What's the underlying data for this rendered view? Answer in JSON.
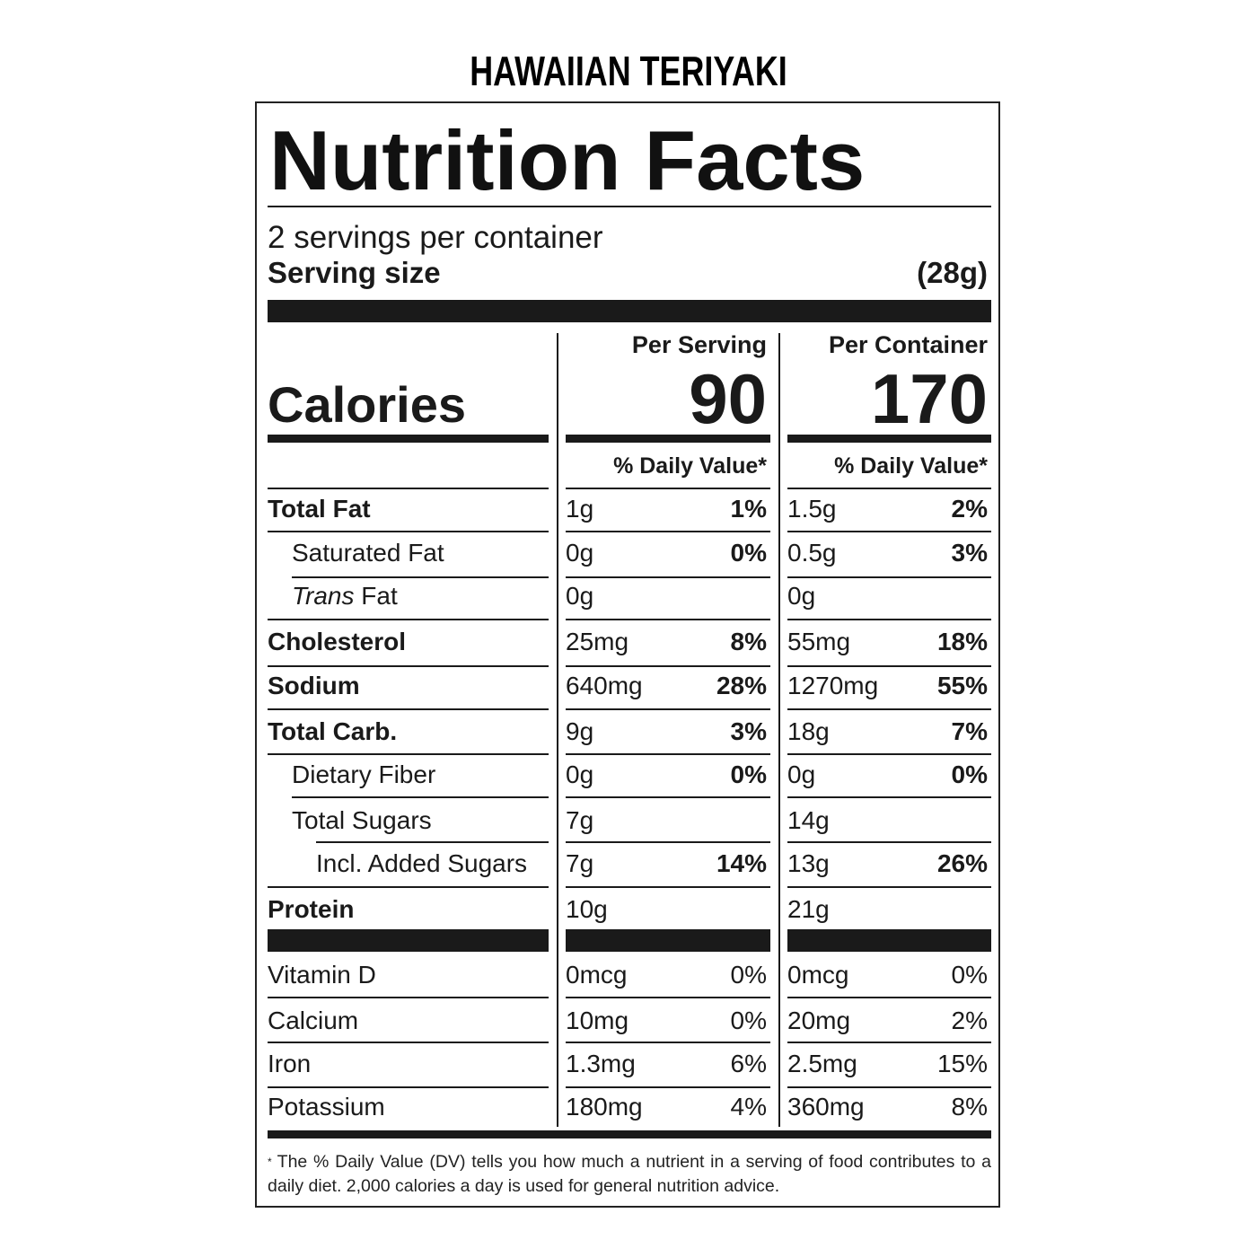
{
  "product_name": "HAWAIIAN TERIYAKI",
  "panel": {
    "title": "Nutrition Facts",
    "servings_per_container": "2 servings per container",
    "serving_size_label": "Serving size",
    "serving_size_value": "(28g)",
    "per_serving_label": "Per Serving",
    "per_container_label": "Per Container",
    "calories_label": "Calories",
    "calories_per_serving": "90",
    "calories_per_container": "170",
    "daily_value_header": "% Daily Value*",
    "nutrients": [
      {
        "label": "Total Fat",
        "bold": true,
        "indent": 0,
        "serving_amount": "1g",
        "serving_dv": "1%",
        "container_amount": "1.5g",
        "container_dv": "2%"
      },
      {
        "label": "Saturated Fat",
        "bold": false,
        "indent": 1,
        "serving_amount": "0g",
        "serving_dv": "0%",
        "container_amount": "0.5g",
        "container_dv": "3%"
      },
      {
        "label_italic": "Trans",
        "label": " Fat",
        "bold": false,
        "indent": 1,
        "serving_amount": "0g",
        "serving_dv": "",
        "container_amount": "0g",
        "container_dv": ""
      },
      {
        "label": "Cholesterol",
        "bold": true,
        "indent": 0,
        "serving_amount": "25mg",
        "serving_dv": "8%",
        "container_amount": "55mg",
        "container_dv": "18%"
      },
      {
        "label": "Sodium",
        "bold": true,
        "indent": 0,
        "serving_amount": "640mg",
        "serving_dv": "28%",
        "container_amount": "1270mg",
        "container_dv": "55%"
      },
      {
        "label": "Total Carb.",
        "bold": true,
        "indent": 0,
        "serving_amount": "9g",
        "serving_dv": "3%",
        "container_amount": "18g",
        "container_dv": "7%"
      },
      {
        "label": "Dietary Fiber",
        "bold": false,
        "indent": 1,
        "serving_amount": "0g",
        "serving_dv": "0%",
        "container_amount": "0g",
        "container_dv": "0%"
      },
      {
        "label": "Total Sugars",
        "bold": false,
        "indent": 1,
        "serving_amount": "7g",
        "serving_dv": "",
        "container_amount": "14g",
        "container_dv": ""
      },
      {
        "label": "Incl. Added Sugars",
        "bold": false,
        "indent": 2,
        "serving_amount": "7g",
        "serving_dv": "14%",
        "container_amount": "13g",
        "container_dv": "26%"
      },
      {
        "label": "Protein",
        "bold": true,
        "indent": 0,
        "serving_amount": "10g",
        "serving_dv": "",
        "container_amount": "21g",
        "container_dv": ""
      }
    ],
    "micronutrients": [
      {
        "label": "Vitamin D",
        "serving_amount": "0mcg",
        "serving_dv": "0%",
        "container_amount": "0mcg",
        "container_dv": "0%"
      },
      {
        "label": "Calcium",
        "serving_amount": "10mg",
        "serving_dv": "0%",
        "container_amount": "20mg",
        "container_dv": "2%"
      },
      {
        "label": "Iron",
        "serving_amount": "1.3mg",
        "serving_dv": "6%",
        "container_amount": "2.5mg",
        "container_dv": "15%"
      },
      {
        "label": "Potassium",
        "serving_amount": "180mg",
        "serving_dv": "4%",
        "container_amount": "360mg",
        "container_dv": "8%"
      }
    ],
    "footnote_mark": "*",
    "footnote": "The % Daily Value (DV) tells you how much a nutrient in a serving of food contributes to a daily diet. 2,000 calories a day is used for general nutrition advice."
  }
}
